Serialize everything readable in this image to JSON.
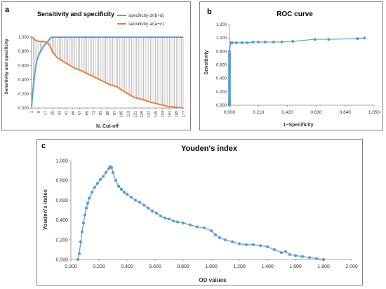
{
  "chart_data": [
    {
      "type": "line",
      "panel_label": "a",
      "title": "Sensitivity and specificity",
      "xlabel": "N. Cut-off",
      "ylabel": "Sensitivity and specificity",
      "ylim": [
        0,
        1
      ],
      "yticks": [
        "0.000",
        "0.200",
        "0.400",
        "0.600",
        "0.800",
        "1.000"
      ],
      "xticks": [
        "1",
        "9",
        "17",
        "25",
        "33",
        "41",
        "49",
        "57",
        "65",
        "73",
        "81",
        "89",
        "97",
        "105",
        "113",
        "121",
        "129",
        "137",
        "145",
        "153",
        "161",
        "169",
        "177"
      ],
      "x": [
        1,
        3,
        5,
        7,
        9,
        11,
        13,
        15,
        17,
        19,
        21,
        23,
        25,
        30,
        40,
        50,
        60,
        70,
        80,
        90,
        100,
        110,
        120,
        130,
        140,
        150,
        160,
        170,
        177
      ],
      "legend_position": "top-right",
      "grid": false,
      "drop_lines": true,
      "series": [
        {
          "name": "specificity d/(b+d)",
          "color": "#5b9bd5",
          "values": [
            0.02,
            0.3,
            0.52,
            0.66,
            0.74,
            0.79,
            0.83,
            0.87,
            0.9,
            0.93,
            0.96,
            0.99,
            1.0,
            1.0,
            1.0,
            1.0,
            1.0,
            1.0,
            1.0,
            1.0,
            1.0,
            1.0,
            1.0,
            1.0,
            1.0,
            1.0,
            1.0,
            1.0,
            1.0
          ]
        },
        {
          "name": "sensitivity a/(a+c)",
          "color": "#ed7d31",
          "values": [
            1.0,
            0.99,
            0.96,
            0.95,
            0.94,
            0.94,
            0.94,
            0.94,
            0.93,
            0.92,
            0.9,
            0.86,
            0.8,
            0.72,
            0.64,
            0.57,
            0.52,
            0.46,
            0.4,
            0.34,
            0.3,
            0.22,
            0.15,
            0.12,
            0.08,
            0.05,
            0.02,
            0.01,
            0.0
          ]
        }
      ]
    },
    {
      "type": "line",
      "panel_label": "b",
      "title": "ROC curve",
      "xlabel": "1−Specificity",
      "ylabel": "Sensitivity",
      "xlim": [
        0,
        1.05
      ],
      "ylim": [
        0,
        1.2
      ],
      "xticks": [
        "0.000",
        "0.210",
        "0.420",
        "0.630",
        "0.840",
        "1.050"
      ],
      "yticks": [
        "0.000",
        "0.200",
        "0.400",
        "0.600",
        "0.800",
        "1.000",
        "1.200"
      ],
      "grid": false,
      "series": [
        {
          "name": "",
          "color": "#5b9bd5",
          "x": [
            0,
            0,
            0,
            0,
            0,
            0,
            0,
            0,
            0,
            0,
            0,
            0,
            0,
            0,
            0,
            0,
            0,
            0,
            0,
            0,
            0,
            0,
            0,
            0,
            0,
            0,
            0,
            0,
            0,
            0.01,
            0.02,
            0.05,
            0.09,
            0.13,
            0.17,
            0.21,
            0.26,
            0.32,
            0.38,
            0.46,
            0.62,
            0.72,
            0.93,
            0.98
          ],
          "y": [
            0.0,
            0.02,
            0.04,
            0.06,
            0.08,
            0.1,
            0.13,
            0.16,
            0.19,
            0.22,
            0.25,
            0.28,
            0.31,
            0.34,
            0.37,
            0.4,
            0.43,
            0.46,
            0.49,
            0.52,
            0.55,
            0.58,
            0.61,
            0.64,
            0.67,
            0.7,
            0.73,
            0.76,
            0.8,
            0.93,
            0.93,
            0.93,
            0.93,
            0.93,
            0.94,
            0.94,
            0.94,
            0.94,
            0.94,
            0.95,
            0.98,
            0.98,
            0.99,
            1.0
          ]
        }
      ]
    },
    {
      "type": "line",
      "panel_label": "c",
      "title": "Youden's index",
      "xlabel": "OD values",
      "ylabel": "Youden's index",
      "xlim": [
        0,
        2
      ],
      "ylim": [
        0,
        1
      ],
      "xticks": [
        "0.000",
        "0.200",
        "0.400",
        "0.600",
        "0.800",
        "1.000",
        "1.200",
        "1.400",
        "1.600",
        "1.800",
        "2.000"
      ],
      "yticks": [
        "0.000",
        "0.200",
        "0.400",
        "0.600",
        "0.800",
        "1.000"
      ],
      "grid": false,
      "series": [
        {
          "name": "",
          "color": "#5b9bd5",
          "x": [
            0.05,
            0.06,
            0.07,
            0.08,
            0.09,
            0.1,
            0.11,
            0.12,
            0.13,
            0.15,
            0.17,
            0.19,
            0.21,
            0.23,
            0.25,
            0.27,
            0.28,
            0.29,
            0.3,
            0.32,
            0.34,
            0.36,
            0.38,
            0.4,
            0.43,
            0.46,
            0.49,
            0.52,
            0.55,
            0.58,
            0.61,
            0.64,
            0.67,
            0.7,
            0.73,
            0.76,
            0.8,
            0.85,
            0.9,
            0.95,
            1.0,
            1.03,
            1.06,
            1.1,
            1.15,
            1.2,
            1.25,
            1.3,
            1.35,
            1.4,
            1.45,
            1.5,
            1.53,
            1.56,
            1.6,
            1.65,
            1.7,
            1.75,
            1.8
          ],
          "y": [
            0.0,
            0.06,
            0.18,
            0.28,
            0.37,
            0.45,
            0.52,
            0.57,
            0.62,
            0.68,
            0.73,
            0.77,
            0.81,
            0.84,
            0.88,
            0.92,
            0.94,
            0.93,
            0.88,
            0.8,
            0.74,
            0.71,
            0.68,
            0.66,
            0.63,
            0.6,
            0.58,
            0.55,
            0.52,
            0.49,
            0.47,
            0.44,
            0.42,
            0.41,
            0.39,
            0.38,
            0.37,
            0.35,
            0.33,
            0.32,
            0.29,
            0.25,
            0.22,
            0.2,
            0.18,
            0.16,
            0.15,
            0.15,
            0.14,
            0.13,
            0.1,
            0.07,
            0.08,
            0.05,
            0.04,
            0.03,
            0.02,
            0.01,
            0.0
          ]
        }
      ]
    }
  ]
}
